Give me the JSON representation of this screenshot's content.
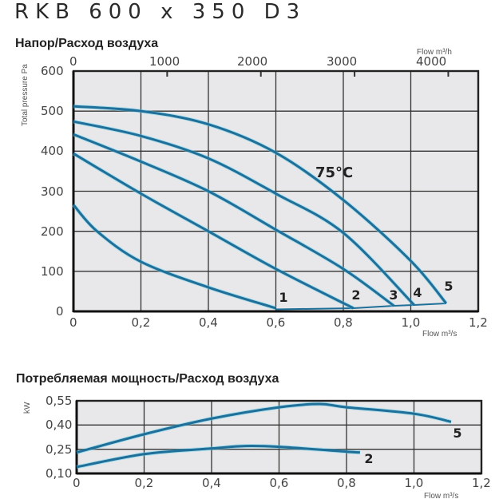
{
  "title": "RKB 600 x 350 D3",
  "colors": {
    "curve": "#1f6f99",
    "curve_glow": "#5fd0f0",
    "plot_bg": "#e8e8ea",
    "grid": "#333333"
  },
  "chart_data": [
    {
      "type": "line",
      "title": "Напор/Расход воздуха",
      "xlabel": "Flow m³/s",
      "xlabel_top": "Flow m³/h",
      "ylabel": "Total pressure Pa",
      "xlim": [
        0,
        1.2
      ],
      "ylim": [
        0,
        600
      ],
      "x_ticks": [
        "0",
        "0,2",
        "0,4",
        "0,6",
        "0,8",
        "1,0",
        "1,2"
      ],
      "x_top_ticks": [
        "0",
        "1000",
        "2000",
        "3000",
        "4000"
      ],
      "y_ticks": [
        "0",
        "100",
        "200",
        "300",
        "400",
        "500",
        "600"
      ],
      "grid": true,
      "annotation": "75°C",
      "series": [
        {
          "name": "1",
          "x": [
            0,
            0.07,
            0.2,
            0.4,
            0.6
          ],
          "y": [
            266,
            200,
            124,
            60,
            8
          ]
        },
        {
          "name": "2",
          "x": [
            0,
            0.2,
            0.4,
            0.6,
            0.83
          ],
          "y": [
            394,
            294,
            200,
            106,
            8
          ]
        },
        {
          "name": "3",
          "x": [
            0,
            0.2,
            0.4,
            0.6,
            0.8,
            0.95
          ],
          "y": [
            442,
            374,
            300,
            204,
            106,
            14
          ]
        },
        {
          "name": "4",
          "x": [
            0,
            0.2,
            0.4,
            0.6,
            0.8,
            1.01
          ],
          "y": [
            474,
            438,
            382,
            294,
            196,
            16
          ]
        },
        {
          "name": "5",
          "x": [
            0,
            0.2,
            0.4,
            0.6,
            0.8,
            1.0,
            1.105
          ],
          "y": [
            512,
            500,
            467,
            396,
            278,
            126,
            20
          ]
        }
      ],
      "system_line": {
        "x": [
          0.6,
          0.83,
          0.95,
          1.01,
          1.105
        ],
        "y": [
          5,
          8,
          14,
          16,
          20
        ]
      }
    },
    {
      "type": "line",
      "title": "Потребляемая мощность/Расход воздуха",
      "xlabel": "Flow m³/s",
      "ylabel": "kW",
      "xlim": [
        0,
        1.2
      ],
      "ylim": [
        0.1,
        0.55
      ],
      "x_ticks": [
        "0",
        "0,2",
        "0,4",
        "0,6",
        "0,8",
        "1,0",
        "1,2"
      ],
      "y_ticks": [
        "0,10",
        "0,25",
        "0,40",
        "0,55"
      ],
      "grid": true,
      "series": [
        {
          "name": "5",
          "x": [
            0,
            0.2,
            0.4,
            0.6,
            0.72,
            0.8,
            1.0,
            1.11
          ],
          "y": [
            0.23,
            0.343,
            0.44,
            0.51,
            0.53,
            0.51,
            0.47,
            0.42
          ]
        },
        {
          "name": "2",
          "x": [
            0,
            0.2,
            0.4,
            0.5,
            0.6,
            0.8,
            0.84
          ],
          "y": [
            0.14,
            0.22,
            0.255,
            0.27,
            0.265,
            0.235,
            0.23
          ]
        }
      ]
    }
  ]
}
